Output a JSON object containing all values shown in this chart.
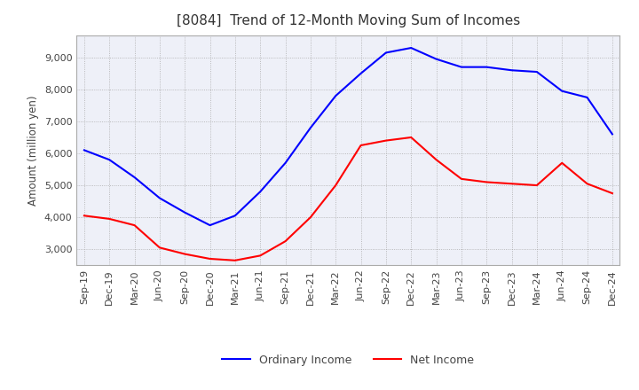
{
  "title": "[8084]  Trend of 12-Month Moving Sum of Incomes",
  "ylabel": "Amount (million yen)",
  "x_labels": [
    "Sep-19",
    "Dec-19",
    "Mar-20",
    "Jun-20",
    "Sep-20",
    "Dec-20",
    "Mar-21",
    "Jun-21",
    "Sep-21",
    "Dec-21",
    "Mar-22",
    "Jun-22",
    "Sep-22",
    "Dec-22",
    "Mar-23",
    "Jun-23",
    "Sep-23",
    "Dec-23",
    "Mar-24",
    "Jun-24",
    "Sep-24",
    "Dec-24"
  ],
  "ordinary_income": [
    6100,
    5800,
    5250,
    4600,
    4150,
    3750,
    4050,
    4800,
    5700,
    6800,
    7800,
    8500,
    9150,
    9300,
    8950,
    8700,
    8700,
    8600,
    8550,
    7950,
    7750,
    6600
  ],
  "net_income": [
    4050,
    3950,
    3750,
    3050,
    2850,
    2700,
    2650,
    2800,
    3250,
    4000,
    5000,
    6250,
    6400,
    6500,
    5800,
    5200,
    5100,
    5050,
    5000,
    5700,
    5050,
    4750
  ],
  "ordinary_color": "#0000ff",
  "net_color": "#ff0000",
  "ylim": [
    2500,
    9700
  ],
  "yticks": [
    3000,
    4000,
    5000,
    6000,
    7000,
    8000,
    9000
  ],
  "plot_bg_color": "#eef0f8",
  "background_color": "#ffffff",
  "grid_color": "#aaaaaa",
  "title_fontsize": 11,
  "legend_fontsize": 9,
  "axis_fontsize": 8,
  "ylabel_fontsize": 8.5
}
